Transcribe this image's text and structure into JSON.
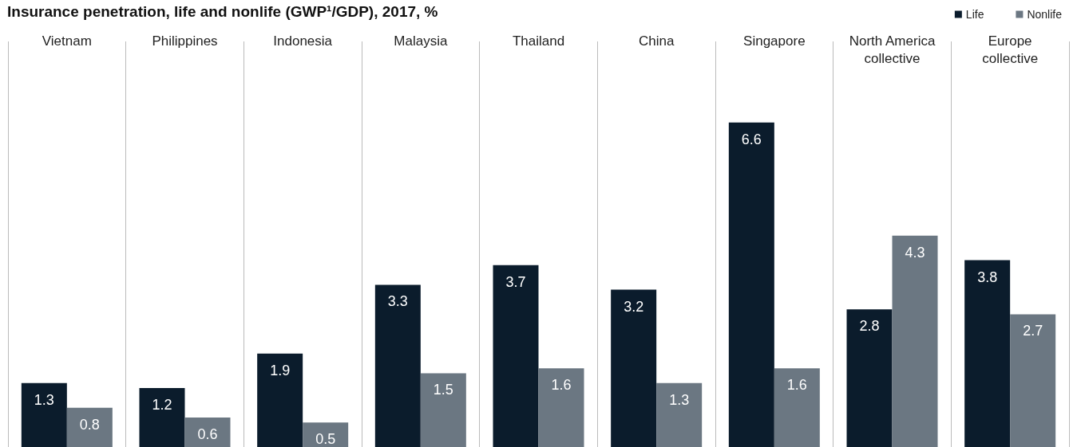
{
  "chart_data": {
    "type": "bar",
    "title": "Insurance penetration, life and nonlife (GWP¹/GDP), 2017, %",
    "categories": [
      "Vietnam",
      "Philippines",
      "Indonesia",
      "Malaysia",
      "Thailand",
      "China",
      "Singapore",
      "North America\ncollective",
      "Europe\ncollective"
    ],
    "series": [
      {
        "name": "Life",
        "color": "#0b1c2c",
        "values": [
          1.3,
          1.2,
          1.9,
          3.3,
          3.7,
          3.2,
          6.6,
          2.8,
          3.8
        ]
      },
      {
        "name": "Nonlife",
        "color": "#6b7782",
        "values": [
          0.8,
          0.6,
          0.5,
          1.5,
          1.6,
          1.3,
          1.6,
          4.3,
          2.7
        ]
      }
    ],
    "data_labels": true,
    "legend": "top right",
    "grid": "x"
  }
}
